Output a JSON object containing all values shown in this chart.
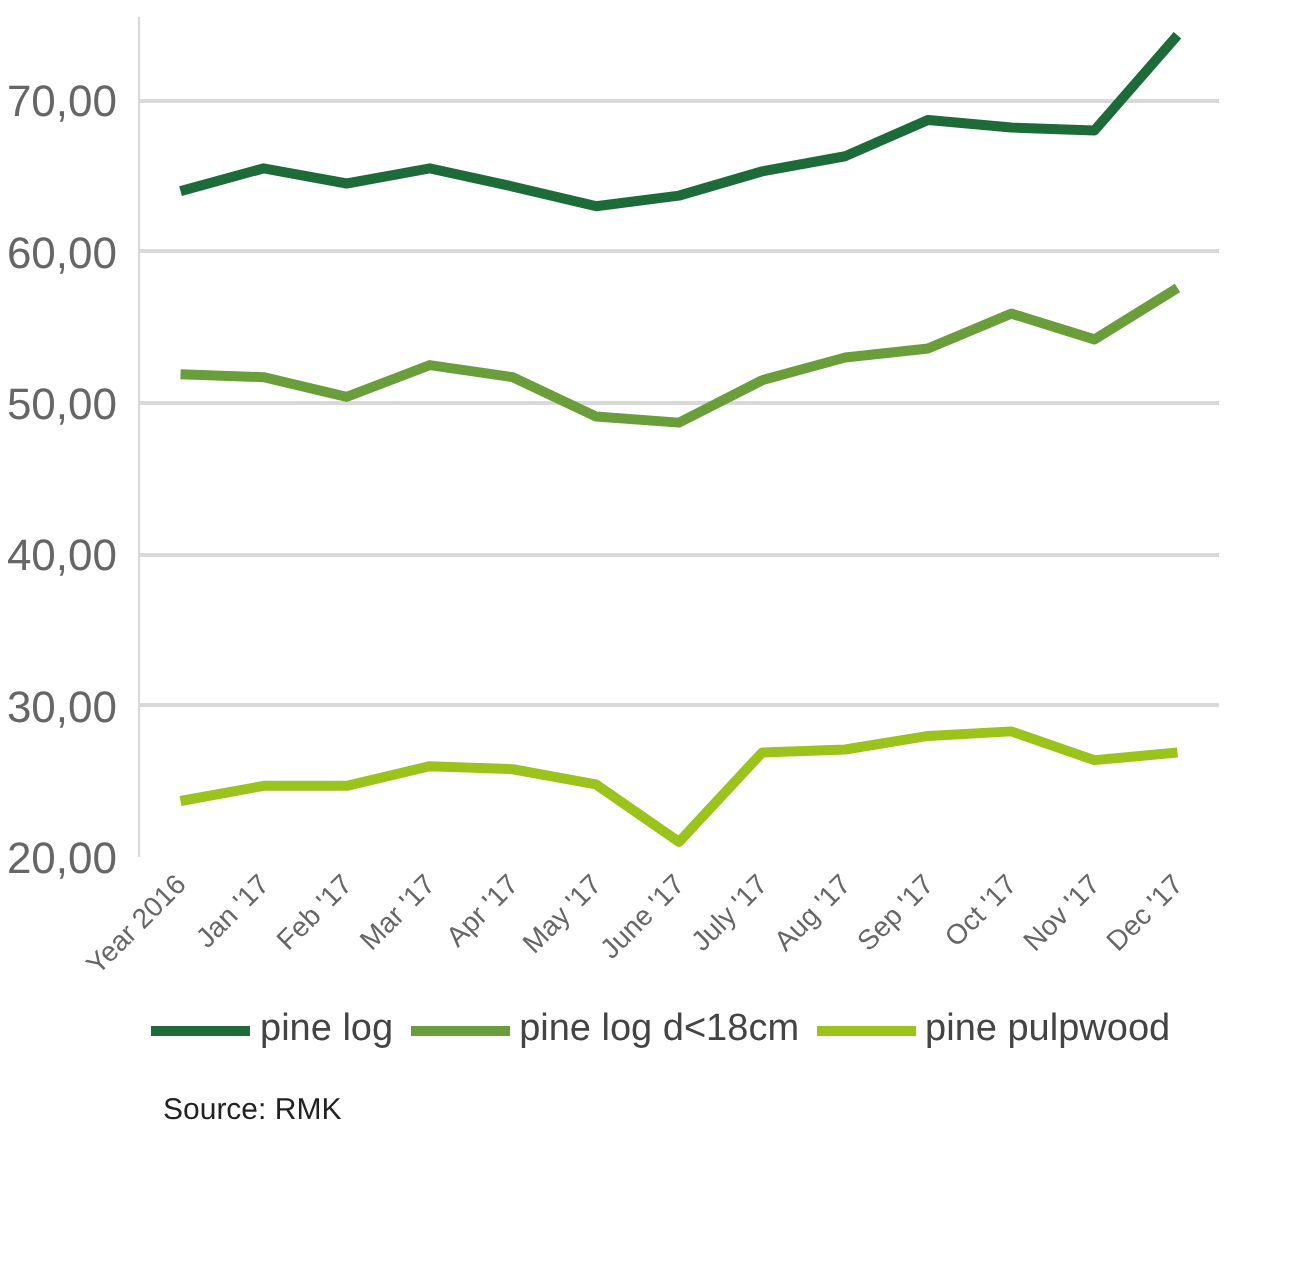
{
  "chart_data": {
    "type": "line",
    "categories": [
      "Year 2016",
      "Jan '17",
      "Feb '17",
      "Mar '17",
      "Apr '17",
      "May '17",
      "June '17",
      "July '17",
      "Aug '17",
      "Sep '17",
      "Oct '17",
      "Nov '17",
      "Dec '17"
    ],
    "series": [
      {
        "name": "pine log",
        "color": "#1e6b3a",
        "values": [
          64.0,
          65.5,
          64.5,
          65.5,
          64.3,
          63.0,
          63.7,
          65.3,
          66.3,
          68.7,
          68.2,
          68.0,
          74.3
        ]
      },
      {
        "name": "pine log d<18cm",
        "color": "#6a9e3a",
        "values": [
          51.9,
          51.7,
          50.4,
          52.5,
          51.7,
          49.1,
          48.7,
          51.5,
          53.0,
          53.6,
          55.9,
          54.2,
          57.6
        ]
      },
      {
        "name": "pine pulpwood",
        "color": "#9ac31c",
        "values": [
          23.7,
          24.7,
          24.7,
          26.0,
          25.8,
          24.8,
          21.0,
          26.9,
          27.1,
          28.0,
          28.3,
          26.4,
          26.9
        ]
      }
    ],
    "ylim": [
      20,
      75.5
    ],
    "yticks": [
      {
        "value": 20,
        "label": "20,00"
      },
      {
        "value": 30,
        "label": "30,00"
      },
      {
        "value": 40,
        "label": "40,00"
      },
      {
        "value": 50,
        "label": "50,00"
      },
      {
        "value": 60,
        "label": "60,00"
      },
      {
        "value": 70,
        "label": "70,00"
      }
    ],
    "grid": "y",
    "legend": "bottom",
    "marker": "none",
    "line_style": "solid",
    "annotations": [
      "Source: RMK"
    ]
  }
}
